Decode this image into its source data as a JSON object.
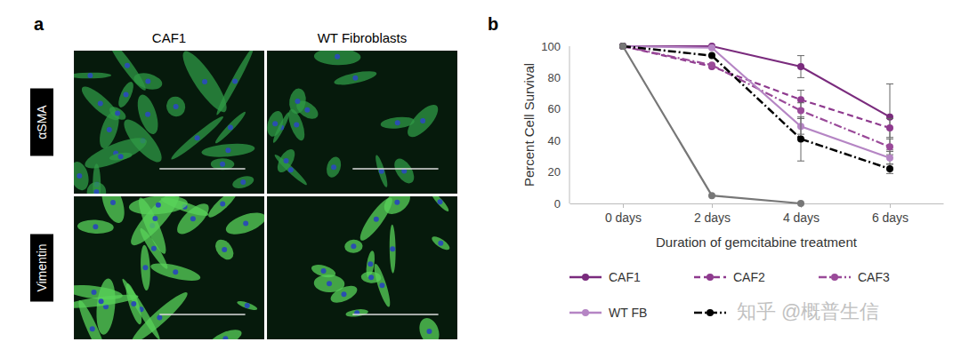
{
  "panel_a": {
    "label": "a",
    "columns": [
      "CAF1",
      "WT Fibroblasts"
    ],
    "rows": [
      "αSMA",
      "Vimentin"
    ]
  },
  "watermark": "知乎 @概普生信",
  "chart_data": {
    "type": "line",
    "panel_label": "b",
    "x_label": "Duration of gemcitabine treatment",
    "y_label": "Percent Cell Survival",
    "categories": [
      "0 days",
      "2 days",
      "4 days",
      "6 days"
    ],
    "ylim": [
      0,
      100
    ],
    "yticks": [
      0,
      20,
      40,
      60,
      80,
      100
    ],
    "legend": "bottom",
    "series": [
      {
        "name": "CAF1",
        "color": "#7a2b7d",
        "line_style": "solid",
        "marker": "circle",
        "values": [
          100,
          100,
          87,
          55
        ],
        "errors": [
          null,
          null,
          7,
          21
        ]
      },
      {
        "name": "CAF2",
        "color": "#8e3a8e",
        "line_style": "dashed",
        "marker": "circle",
        "values": [
          100,
          87,
          66,
          48
        ],
        "errors": [
          null,
          null,
          6,
          6
        ]
      },
      {
        "name": "CAF3",
        "color": "#9a4a99",
        "line_style": "dashdot",
        "marker": "circle",
        "values": [
          100,
          88,
          59,
          36
        ],
        "errors": [
          null,
          null,
          5,
          5
        ]
      },
      {
        "name": "WT FB",
        "color": "#b585c4",
        "line_style": "solid",
        "marker": "circle",
        "values": [
          100,
          99,
          49,
          29
        ],
        "errors": [
          null,
          null,
          5,
          4
        ]
      },
      {
        "color": "#000000",
        "line_style": "dashdot",
        "marker": "circle",
        "values": [
          100,
          94,
          41,
          22
        ],
        "errors": [
          null,
          null,
          14,
          3
        ]
      },
      {
        "color": "#777777",
        "line_style": "solid",
        "marker": "circle",
        "values": [
          100,
          5,
          0,
          null
        ]
      }
    ]
  }
}
